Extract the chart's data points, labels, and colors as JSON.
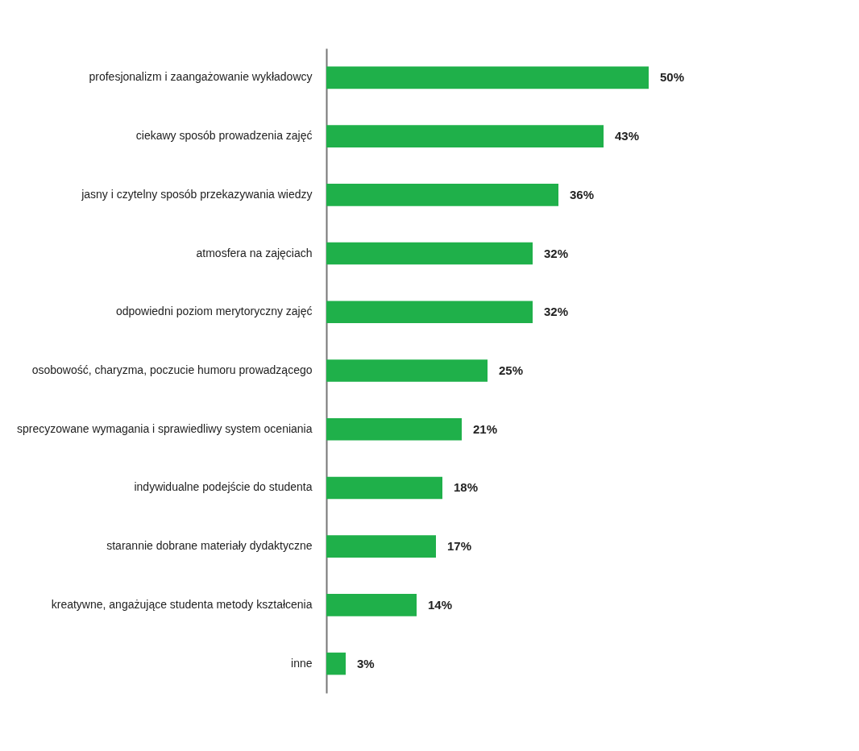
{
  "chart_data": {
    "type": "bar",
    "orientation": "horizontal",
    "categories": [
      "profesjonalizm i zaangażowanie wykładowcy",
      "ciekawy sposób prowadzenia zajęć",
      "jasny i czytelny sposób przekazywania wiedzy",
      "atmosfera na zajęciach",
      "odpowiedni poziom merytoryczny zajęć",
      "osobowość, charyzma, poczucie humoru prowadzącego",
      "sprecyzowane wymagania i sprawiedliwy system oceniania",
      "indywidualne podejście do studenta",
      "starannie dobrane materiały dydaktyczne",
      "kreatywne, angażujące studenta metody kształcenia",
      "inne"
    ],
    "values": [
      50,
      43,
      36,
      32,
      32,
      25,
      21,
      18,
      17,
      14,
      3
    ],
    "value_labels": [
      "50%",
      "43%",
      "36%",
      "32%",
      "32%",
      "25%",
      "21%",
      "18%",
      "17%",
      "14%",
      "3%"
    ],
    "color": "#1fb04a",
    "tick_labels": "y"
  }
}
